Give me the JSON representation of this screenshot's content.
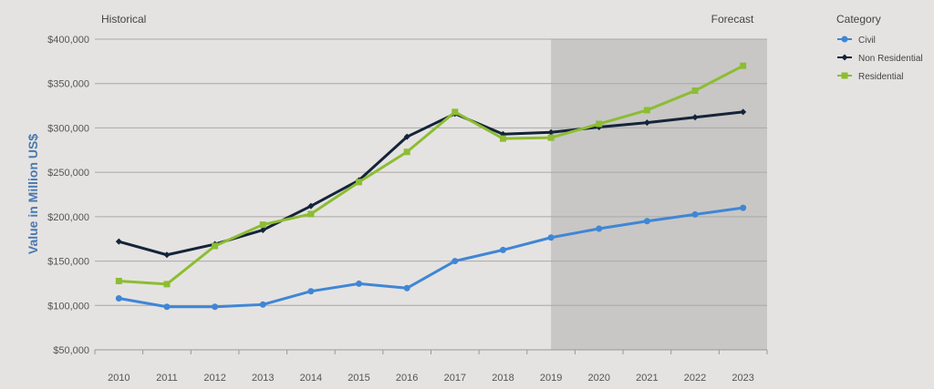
{
  "chart_data": {
    "type": "line",
    "xlabel": "",
    "ylabel": "Value in Million US$",
    "ylim": [
      50000,
      400000
    ],
    "yticks": [
      "$50,000",
      "$100,000",
      "$150,000",
      "$200,000",
      "$250,000",
      "$300,000",
      "$350,000",
      "$400,000"
    ],
    "ytick_values": [
      50000,
      100000,
      150000,
      200000,
      250000,
      300000,
      350000,
      400000
    ],
    "categories": [
      "2010",
      "2011",
      "2012",
      "2013",
      "2014",
      "2015",
      "2016",
      "2017",
      "2018",
      "2019",
      "2020",
      "2021",
      "2022",
      "2023"
    ],
    "grid": "horizontal",
    "legend_position": "right",
    "historical_label": "Historical",
    "forecast_label": "Forecast",
    "forecast_start": "2019",
    "forecast_shade_color": "#c8c7c5",
    "legend_title": "Category",
    "series": [
      {
        "name": "Civil",
        "color": "#3f86d6",
        "marker": "circle",
        "values": [
          108000,
          98500,
          98500,
          101000,
          116000,
          124500,
          119500,
          150000,
          162500,
          176500,
          186500,
          195000,
          202500,
          210000
        ]
      },
      {
        "name": "Non Residential",
        "color": "#14243a",
        "marker": "diamond",
        "values": [
          172000,
          157000,
          169000,
          185000,
          212000,
          241000,
          290000,
          316000,
          293000,
          295000,
          301000,
          306000,
          312000,
          318000
        ]
      },
      {
        "name": "Residential",
        "color": "#8cbd32",
        "marker": "square",
        "values": [
          127500,
          124000,
          167000,
          191000,
          203000,
          239000,
          273000,
          318000,
          288000,
          289000,
          304500,
          320000,
          342000,
          370000
        ]
      }
    ]
  }
}
